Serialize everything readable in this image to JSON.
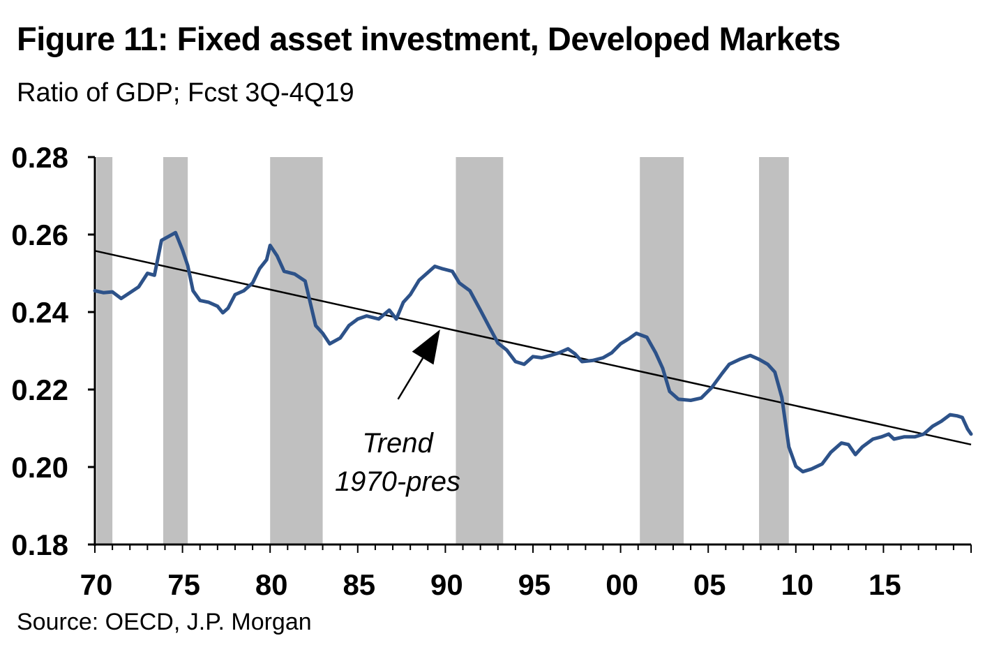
{
  "chart_data": {
    "type": "line",
    "title": "Figure 11: Fixed asset investment, Developed Markets",
    "subtitle": "Ratio of GDP; Fcst 3Q-4Q19",
    "source": "Source: OECD, J.P. Morgan",
    "xlabel": "",
    "ylabel": "",
    "xlim": [
      1970,
      2020
    ],
    "ylim": [
      0.18,
      0.28
    ],
    "y_ticks": [
      0.18,
      0.2,
      0.22,
      0.24,
      0.26,
      0.28
    ],
    "y_tick_labels": [
      "0.18",
      "0.20",
      "0.22",
      "0.24",
      "0.26",
      "0.28"
    ],
    "x_ticks": [
      1970,
      1975,
      1980,
      1985,
      1990,
      1995,
      2000,
      2005,
      2010,
      2015
    ],
    "x_tick_labels": [
      "70",
      "75",
      "80",
      "85",
      "90",
      "95",
      "00",
      "05",
      "10",
      "15"
    ],
    "recession_bands": [
      [
        1970.1,
        1971.0
      ],
      [
        1973.9,
        1975.3
      ],
      [
        1980.0,
        1983.0
      ],
      [
        1990.6,
        1993.3
      ],
      [
        2001.1,
        2003.6
      ],
      [
        2007.9,
        2009.6
      ]
    ],
    "series": [
      {
        "name": "Fixed asset investment",
        "color": "#2d5289",
        "points": [
          [
            1970.0,
            0.2455
          ],
          [
            1970.5,
            0.245
          ],
          [
            1971.0,
            0.2452
          ],
          [
            1971.5,
            0.2435
          ],
          [
            1972.0,
            0.245
          ],
          [
            1972.5,
            0.2465
          ],
          [
            1973.0,
            0.25
          ],
          [
            1973.4,
            0.2495
          ],
          [
            1973.8,
            0.2585
          ],
          [
            1974.2,
            0.2595
          ],
          [
            1974.6,
            0.2605
          ],
          [
            1975.0,
            0.256
          ],
          [
            1975.3,
            0.252
          ],
          [
            1975.6,
            0.2455
          ],
          [
            1976.0,
            0.243
          ],
          [
            1976.5,
            0.2425
          ],
          [
            1977.0,
            0.2415
          ],
          [
            1977.3,
            0.2398
          ],
          [
            1977.6,
            0.241
          ],
          [
            1978.0,
            0.2445
          ],
          [
            1978.5,
            0.2455
          ],
          [
            1979.0,
            0.2475
          ],
          [
            1979.4,
            0.2512
          ],
          [
            1979.8,
            0.2535
          ],
          [
            1980.0,
            0.2572
          ],
          [
            1980.4,
            0.2545
          ],
          [
            1980.8,
            0.2505
          ],
          [
            1981.4,
            0.2498
          ],
          [
            1982.0,
            0.248
          ],
          [
            1982.6,
            0.2365
          ],
          [
            1983.0,
            0.2345
          ],
          [
            1983.4,
            0.2318
          ],
          [
            1984.0,
            0.2333
          ],
          [
            1984.5,
            0.2365
          ],
          [
            1985.0,
            0.2382
          ],
          [
            1985.5,
            0.239
          ],
          [
            1986.2,
            0.2382
          ],
          [
            1986.8,
            0.2405
          ],
          [
            1987.2,
            0.2382
          ],
          [
            1987.6,
            0.2425
          ],
          [
            1988.0,
            0.2445
          ],
          [
            1988.5,
            0.2482
          ],
          [
            1989.0,
            0.2502
          ],
          [
            1989.4,
            0.2518
          ],
          [
            1989.8,
            0.2512
          ],
          [
            1990.4,
            0.2505
          ],
          [
            1990.8,
            0.2475
          ],
          [
            1991.4,
            0.2455
          ],
          [
            1992.0,
            0.2405
          ],
          [
            1992.5,
            0.2362
          ],
          [
            1993.0,
            0.232
          ],
          [
            1993.5,
            0.2302
          ],
          [
            1994.0,
            0.2272
          ],
          [
            1994.5,
            0.2265
          ],
          [
            1995.0,
            0.2285
          ],
          [
            1995.5,
            0.2282
          ],
          [
            1996.0,
            0.2288
          ],
          [
            1996.5,
            0.2295
          ],
          [
            1997.0,
            0.2305
          ],
          [
            1997.4,
            0.2292
          ],
          [
            1997.8,
            0.2272
          ],
          [
            1998.4,
            0.2275
          ],
          [
            1999.0,
            0.2282
          ],
          [
            1999.5,
            0.2295
          ],
          [
            2000.0,
            0.2318
          ],
          [
            2000.5,
            0.2332
          ],
          [
            2000.9,
            0.2345
          ],
          [
            2001.5,
            0.2335
          ],
          [
            2002.0,
            0.2295
          ],
          [
            2002.4,
            0.2255
          ],
          [
            2002.8,
            0.2195
          ],
          [
            2003.3,
            0.2175
          ],
          [
            2004.0,
            0.2172
          ],
          [
            2004.6,
            0.2178
          ],
          [
            2005.2,
            0.2205
          ],
          [
            2005.8,
            0.2242
          ],
          [
            2006.2,
            0.2265
          ],
          [
            2006.8,
            0.2278
          ],
          [
            2007.4,
            0.2288
          ],
          [
            2007.9,
            0.2278
          ],
          [
            2008.4,
            0.2265
          ],
          [
            2008.8,
            0.2245
          ],
          [
            2009.2,
            0.218
          ],
          [
            2009.6,
            0.2052
          ],
          [
            2010.0,
            0.2002
          ],
          [
            2010.4,
            0.1988
          ],
          [
            2010.9,
            0.1995
          ],
          [
            2011.5,
            0.2008
          ],
          [
            2012.0,
            0.2038
          ],
          [
            2012.6,
            0.2062
          ],
          [
            2013.0,
            0.2058
          ],
          [
            2013.4,
            0.2032
          ],
          [
            2013.8,
            0.2052
          ],
          [
            2014.4,
            0.2072
          ],
          [
            2014.9,
            0.2078
          ],
          [
            2015.3,
            0.2085
          ],
          [
            2015.6,
            0.2072
          ],
          [
            2016.2,
            0.2078
          ],
          [
            2016.8,
            0.2078
          ],
          [
            2017.3,
            0.2085
          ],
          [
            2017.8,
            0.2105
          ],
          [
            2018.3,
            0.2118
          ],
          [
            2018.8,
            0.2135
          ],
          [
            2019.2,
            0.2132
          ],
          [
            2019.5,
            0.2128
          ],
          [
            2019.8,
            0.2098
          ],
          [
            2020.0,
            0.2085
          ]
        ]
      },
      {
        "name": "Trend 1970-pres",
        "color": "#000000",
        "points": [
          [
            1970.0,
            0.2558
          ],
          [
            2020.0,
            0.2058
          ]
        ]
      }
    ],
    "annotation": {
      "line1": "Trend",
      "line2": "1970-pres",
      "arrow_from": [
        1987.3,
        0.2175
      ],
      "arrow_to": [
        1989.7,
        0.2355
      ]
    }
  }
}
